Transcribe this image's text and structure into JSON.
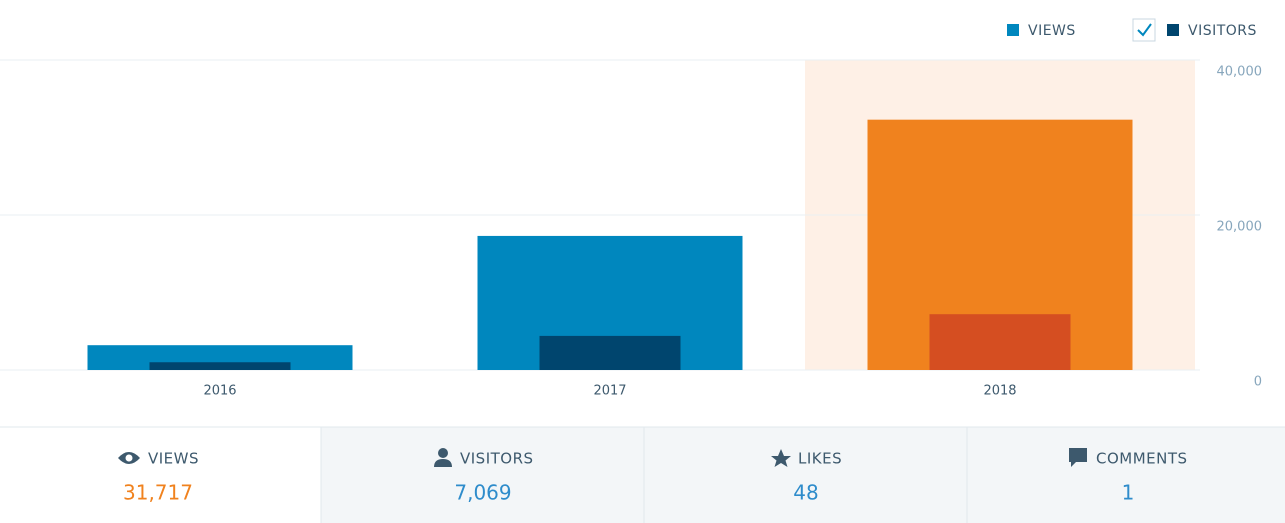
{
  "chart_data": {
    "type": "bar",
    "categories": [
      "2016",
      "2017",
      "2018"
    ],
    "series": [
      {
        "name": "VIEWS",
        "color": "#0087be",
        "values": [
          3200,
          17300,
          32300
        ]
      },
      {
        "name": "VISITORS",
        "color": "#00456e",
        "values": [
          1000,
          4400,
          7200
        ]
      }
    ],
    "selected": "2018",
    "selected_colors": [
      "#f0821e",
      "#d54e21"
    ],
    "selected_background": "#fef0e6",
    "ylim": [
      0,
      40000
    ],
    "yticks": [
      0,
      {
        "value": 20000,
        "label": "20,000"
      },
      {
        "value": 40000,
        "label": "40,000"
      }
    ],
    "grid": true
  },
  "stats": [
    {
      "label": "VIEWS",
      "value": "31,717"
    },
    {
      "label": "VISITORS",
      "value": "7,069"
    },
    {
      "label": "LIKES",
      "value": "48"
    },
    {
      "label": "COMMENTS",
      "value": "1"
    }
  ]
}
